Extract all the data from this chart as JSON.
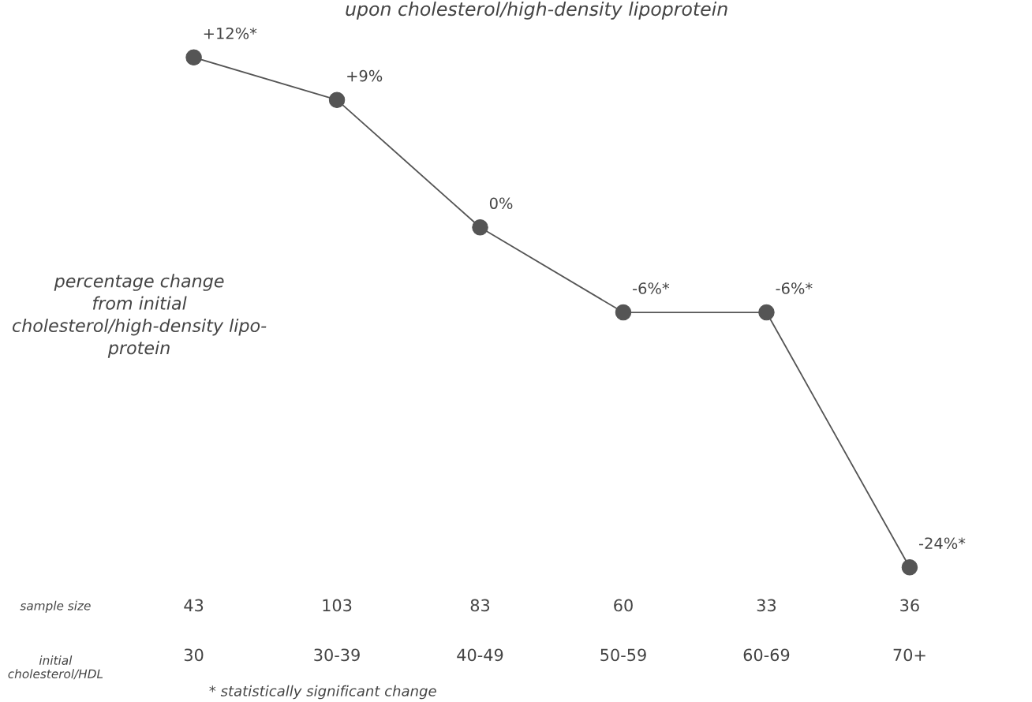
{
  "chart_data": {
    "type": "line",
    "title": "upon cholesterol/high-density lipoprotein",
    "ylabel": "percentage change\nfrom initial\ncholesterol/high-density lipo-\nprotein",
    "xlabel": "initial\ncholesterol/HDL",
    "categories": [
      "30",
      "30-39",
      "40-49",
      "50-59",
      "60-69",
      "70+"
    ],
    "series": [
      {
        "color": "#555555",
        "values": [
          12,
          9,
          0,
          -6,
          -6,
          -24
        ],
        "value_labels": [
          "+12%*",
          "+9%",
          "0%",
          "-6%*",
          "-6%*",
          "-24%*"
        ]
      }
    ],
    "marker": "circle",
    "line_style": "solid",
    "grid": false,
    "legend": false,
    "tick_labels": "x",
    "annotations": [
      "sample size",
      "43",
      "103",
      "83",
      "60",
      "33",
      "36",
      "* statistically significant change"
    ]
  }
}
